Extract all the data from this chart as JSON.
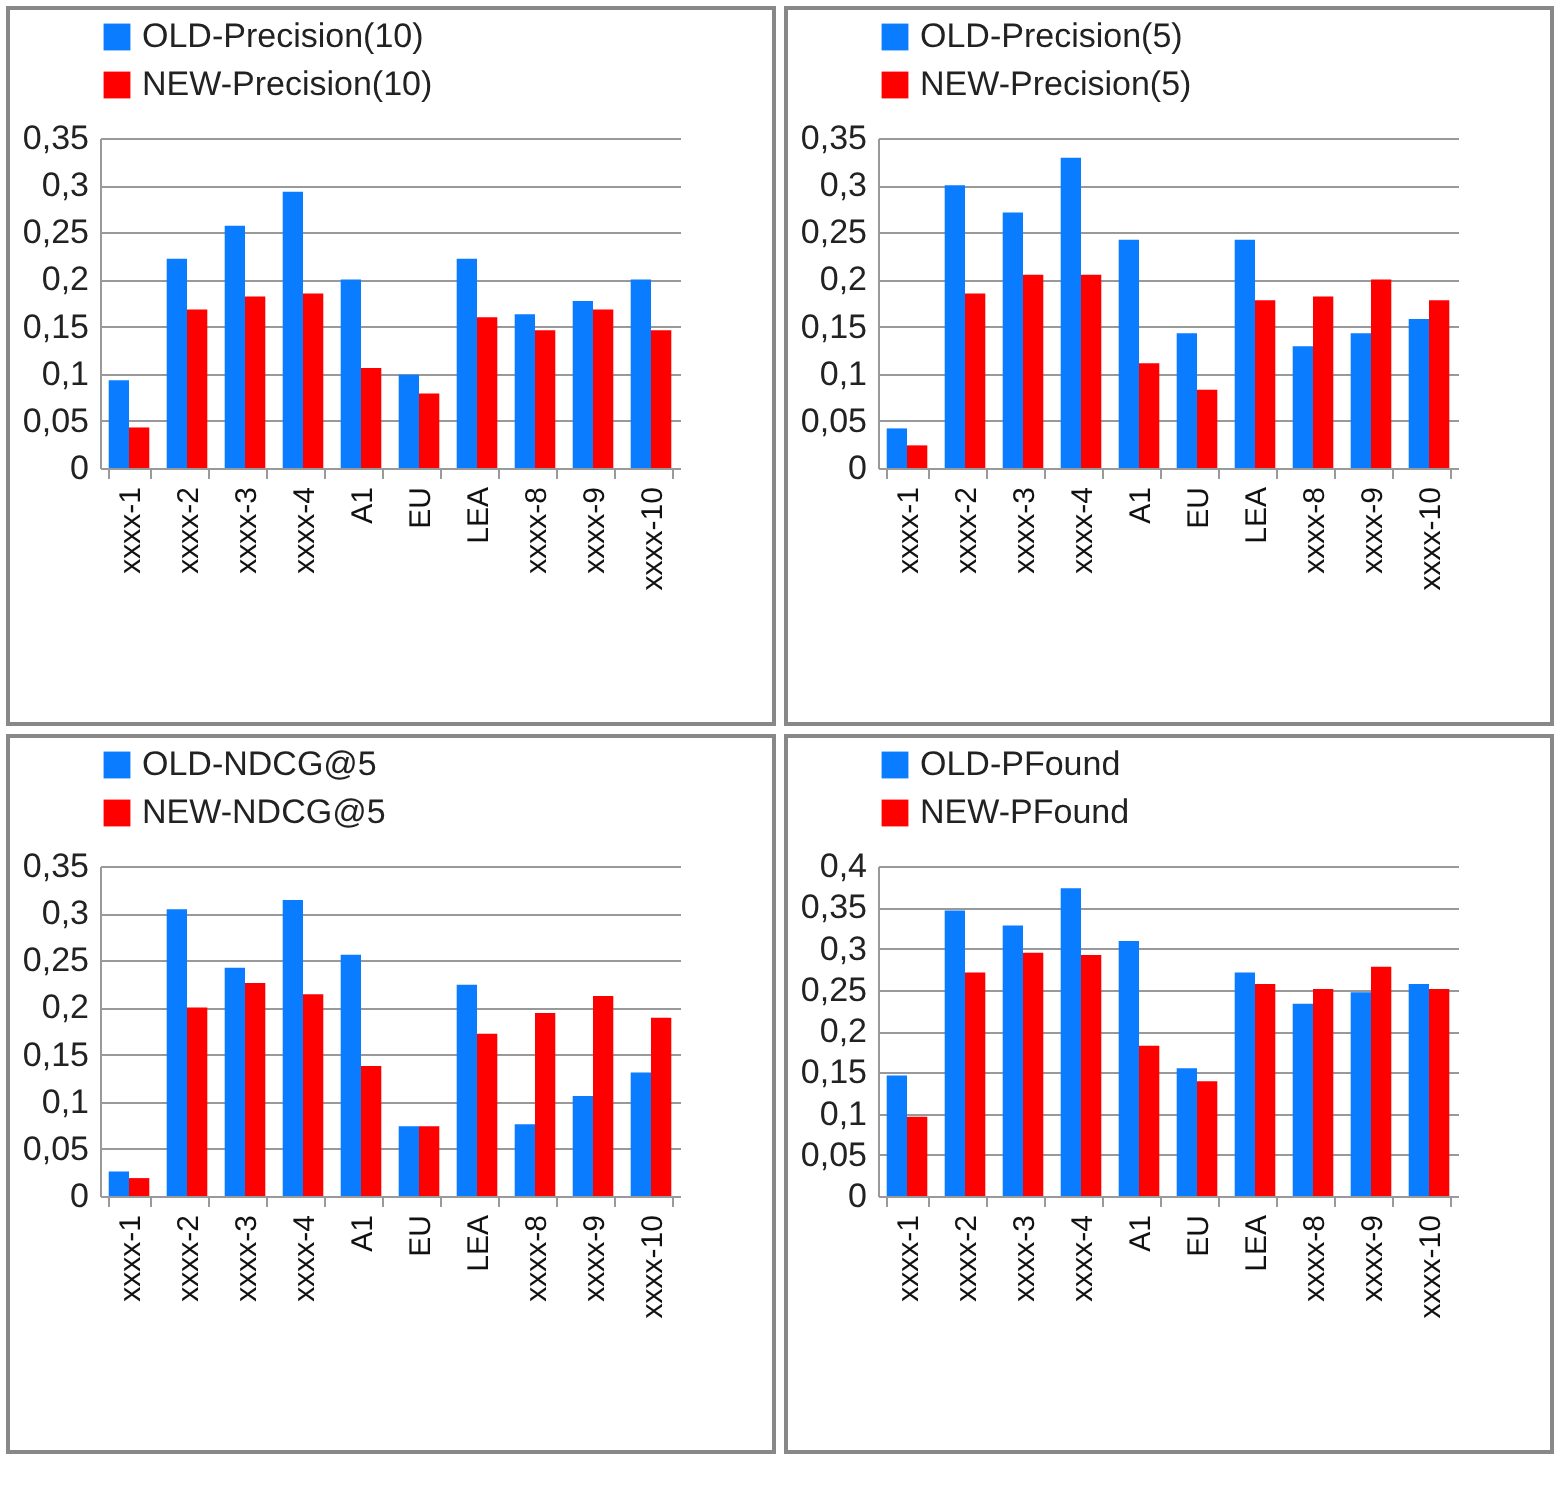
{
  "chart_data": [
    {
      "type": "bar",
      "categories": [
        "xxxx-1",
        "xxxx-2",
        "xxxx-3",
        "xxxx-4",
        "A1",
        "EU",
        "LEA",
        "xxxx-8",
        "xxxx-9",
        "xxxx-10"
      ],
      "series": [
        {
          "name": "OLD-Precision(10)",
          "color": "#0a7cff",
          "values": [
            0.093,
            0.222,
            0.257,
            0.293,
            0.2,
            0.099,
            0.222,
            0.163,
            0.177,
            0.2
          ]
        },
        {
          "name": "NEW-Precision(10)",
          "color": "#ff0000",
          "values": [
            0.043,
            0.168,
            0.182,
            0.185,
            0.106,
            0.079,
            0.16,
            0.146,
            0.168,
            0.146
          ]
        }
      ],
      "ylim": [
        0,
        0.35
      ],
      "yticks": [
        {
          "value": 0,
          "label": "0"
        },
        {
          "value": 0.05,
          "label": "0,05"
        },
        {
          "value": 0.1,
          "label": "0,1"
        },
        {
          "value": 0.15,
          "label": "0,15"
        },
        {
          "value": 0.2,
          "label": "0,2"
        },
        {
          "value": 0.25,
          "label": "0,25"
        },
        {
          "value": 0.3,
          "label": "0,3"
        },
        {
          "value": 0.35,
          "label": "0,35"
        }
      ],
      "grid": "y",
      "legend": "top"
    },
    {
      "type": "bar",
      "categories": [
        "xxxx-1",
        "xxxx-2",
        "xxxx-3",
        "xxxx-4",
        "A1",
        "EU",
        "LEA",
        "xxxx-8",
        "xxxx-9",
        "xxxx-10"
      ],
      "series": [
        {
          "name": "OLD-Precision(5)",
          "color": "#0a7cff",
          "values": [
            0.042,
            0.3,
            0.271,
            0.329,
            0.242,
            0.143,
            0.242,
            0.129,
            0.143,
            0.158
          ]
        },
        {
          "name": "NEW-Precision(5)",
          "color": "#ff0000",
          "values": [
            0.024,
            0.185,
            0.205,
            0.205,
            0.111,
            0.083,
            0.178,
            0.182,
            0.2,
            0.178
          ]
        }
      ],
      "ylim": [
        0,
        0.35
      ],
      "yticks": [
        {
          "value": 0,
          "label": "0"
        },
        {
          "value": 0.05,
          "label": "0,05"
        },
        {
          "value": 0.1,
          "label": "0,1"
        },
        {
          "value": 0.15,
          "label": "0,15"
        },
        {
          "value": 0.2,
          "label": "0,2"
        },
        {
          "value": 0.25,
          "label": "0,25"
        },
        {
          "value": 0.3,
          "label": "0,3"
        },
        {
          "value": 0.35,
          "label": "0,35"
        }
      ],
      "grid": "y",
      "legend": "top"
    },
    {
      "type": "bar",
      "categories": [
        "xxxx-1",
        "xxxx-2",
        "xxxx-3",
        "xxxx-4",
        "A1",
        "EU",
        "LEA",
        "xxxx-8",
        "xxxx-9",
        "xxxx-10"
      ],
      "series": [
        {
          "name": "OLD-NDCG@5",
          "color": "#0a7cff",
          "values": [
            0.026,
            0.304,
            0.242,
            0.314,
            0.256,
            0.074,
            0.224,
            0.076,
            0.106,
            0.131
          ]
        },
        {
          "name": "NEW-NDCG@5",
          "color": "#ff0000",
          "values": [
            0.019,
            0.2,
            0.226,
            0.214,
            0.138,
            0.074,
            0.172,
            0.194,
            0.212,
            0.189
          ]
        }
      ],
      "ylim": [
        0,
        0.35
      ],
      "yticks": [
        {
          "value": 0,
          "label": "0"
        },
        {
          "value": 0.05,
          "label": "0,05"
        },
        {
          "value": 0.1,
          "label": "0,1"
        },
        {
          "value": 0.15,
          "label": "0,15"
        },
        {
          "value": 0.2,
          "label": "0,2"
        },
        {
          "value": 0.25,
          "label": "0,25"
        },
        {
          "value": 0.3,
          "label": "0,3"
        },
        {
          "value": 0.35,
          "label": "0,35"
        }
      ],
      "grid": "y",
      "legend": "top"
    },
    {
      "type": "bar",
      "categories": [
        "xxxx-1",
        "xxxx-2",
        "xxxx-3",
        "xxxx-4",
        "A1",
        "EU",
        "LEA",
        "xxxx-8",
        "xxxx-9",
        "xxxx-10"
      ],
      "series": [
        {
          "name": "OLD-PFound",
          "color": "#0a7cff",
          "values": [
            0.146,
            0.346,
            0.328,
            0.373,
            0.309,
            0.155,
            0.271,
            0.233,
            0.247,
            0.257
          ]
        },
        {
          "name": "NEW-PFound",
          "color": "#ff0000",
          "values": [
            0.096,
            0.271,
            0.295,
            0.292,
            0.182,
            0.139,
            0.257,
            0.251,
            0.278,
            0.251
          ]
        }
      ],
      "ylim": [
        0,
        0.4
      ],
      "yticks": [
        {
          "value": 0,
          "label": "0"
        },
        {
          "value": 0.05,
          "label": "0,05"
        },
        {
          "value": 0.1,
          "label": "0,1"
        },
        {
          "value": 0.15,
          "label": "0,15"
        },
        {
          "value": 0.2,
          "label": "0,2"
        },
        {
          "value": 0.25,
          "label": "0,25"
        },
        {
          "value": 0.3,
          "label": "0,3"
        },
        {
          "value": 0.35,
          "label": "0,35"
        },
        {
          "value": 0.4,
          "label": "0,4"
        }
      ],
      "grid": "y",
      "legend": "top"
    }
  ]
}
